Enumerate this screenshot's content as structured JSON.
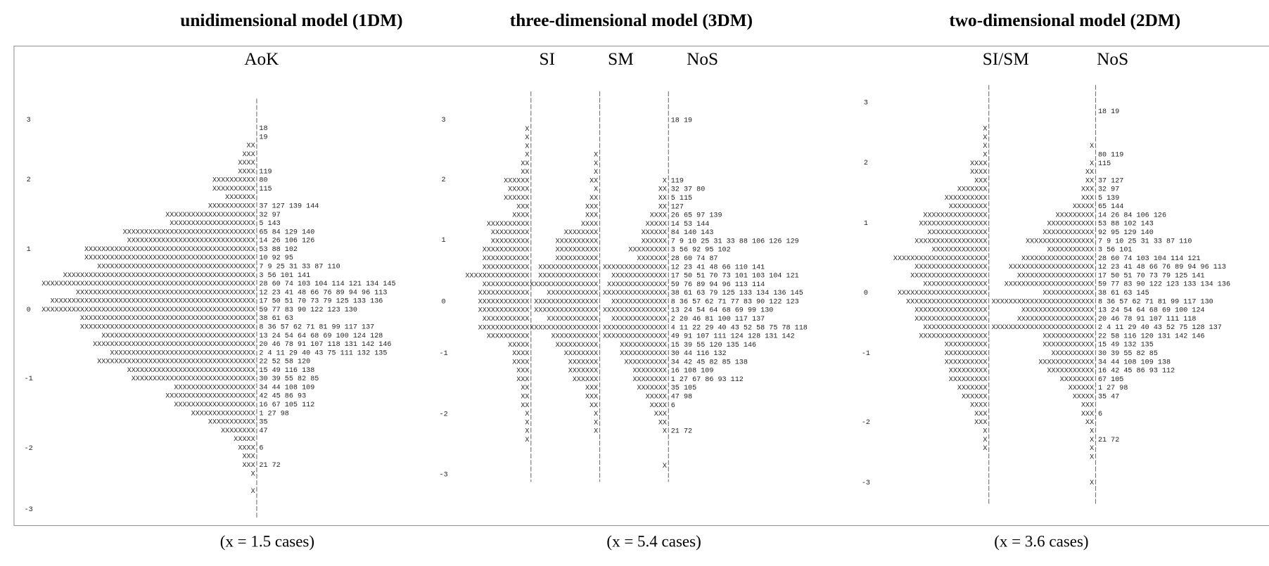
{
  "panels": [
    {
      "title": "unidimensional model (1DM)",
      "columns": [
        "AoK"
      ],
      "axis_labels": [
        "3",
        "2",
        "1",
        "0",
        "-1",
        "-2",
        "-3"
      ],
      "note": "(x = 1.5 cases)",
      "rows": [
        [
          null,
          null
        ],
        [
          null,
          null
        ],
        [
          null,
          null
        ],
        [
          null,
          "18"
        ],
        [
          null,
          "19"
        ],
        [
          "XX",
          null
        ],
        [
          "XXX",
          null
        ],
        [
          "XXXX",
          null
        ],
        [
          "XXXX",
          "119"
        ],
        [
          "XXXXXXXXXX",
          "80"
        ],
        [
          "XXXXXXXXXX",
          "115"
        ],
        [
          "XXXXXXX",
          null
        ],
        [
          "XXXXXXXXXXX",
          "37 127 139 144"
        ],
        [
          "XXXXXXXXXXXXXXXXXXXXX",
          "32 97"
        ],
        [
          "XXXXXXXXXXXXXXXXXXXX",
          "5 143"
        ],
        [
          "XXXXXXXXXXXXXXXXXXXXXXXXXXXXXXX",
          "65 84 129 140"
        ],
        [
          "XXXXXXXXXXXXXXXXXXXXXXXXXXXXXX",
          "14 26 106 126"
        ],
        [
          "XXXXXXXXXXXXXXXXXXXXXXXXXXXXXXXXXXXXXXXX",
          "53 88 102"
        ],
        [
          "XXXXXXXXXXXXXXXXXXXXXXXXXXXXXXXXXXXXXXXX",
          "10 92 95"
        ],
        [
          "XXXXXXXXXXXXXXXXXXXXXXXXXXXXXXXXXXXXX",
          "7 9 25 31 33 87 110"
        ],
        [
          "XXXXXXXXXXXXXXXXXXXXXXXXXXXXXXXXXXXXXXXXXXXXX",
          "3 56 101 141"
        ],
        [
          "XXXXXXXXXXXXXXXXXXXXXXXXXXXXXXXXXXXXXXXXXXXXXXXXXX",
          "28 60 74 103 104 114 121 134 145"
        ],
        [
          "XXXXXXXXXXXXXXXXXXXXXXXXXXXXXXXXXXXXXXXXXX",
          "12 23 41 48 66 76 89 94 96 113"
        ],
        [
          "XXXXXXXXXXXXXXXXXXXXXXXXXXXXXXXXXXXXXXXXXXXXXXXX",
          "17 50 51 70 73 79 125 133 136"
        ],
        [
          "XXXXXXXXXXXXXXXXXXXXXXXXXXXXXXXXXXXXXXXXXXXXXXXXXX",
          "59 77 83 90 122 123 130"
        ],
        [
          "XXXXXXXXXXXXXXXXXXXXXXXXXXXXXXXXXXXXXXXXX",
          "38 61 63"
        ],
        [
          "XXXXXXXXXXXXXXXXXXXXXXXXXXXXXXXXXXXXXXXXX",
          "8 36 57 62 71 81 99 117 137"
        ],
        [
          "XXXXXXXXXXXXXXXXXXXXXXXXXXXXXXXXXXXX",
          "13 24 54 64 68 69 100 124 128"
        ],
        [
          "XXXXXXXXXXXXXXXXXXXXXXXXXXXXXXXXXXXXXX",
          "20 46 78 91 107 118 131 142 146"
        ],
        [
          "XXXXXXXXXXXXXXXXXXXXXXXXXXXXXXXXXX",
          "2 4 11 29 40 43 75 111 132 135"
        ],
        [
          "XXXXXXXXXXXXXXXXXXXXXXXXXXXXXXXXXXXXX",
          "22 52 58 120"
        ],
        [
          "XXXXXXXXXXXXXXXXXXXXXXXXXXXXXX",
          "15 49 116 138"
        ],
        [
          "XXXXXXXXXXXXXXXXXXXXXXXXXXXXX",
          "30 39 55 82 85"
        ],
        [
          "XXXXXXXXXXXXXXXXXXX",
          "34 44 108 109"
        ],
        [
          "XXXXXXXXXXXXXXXXXXXXX",
          "42 45 86 93"
        ],
        [
          "XXXXXXXXXXXXXXXXXXX",
          "16 67 105 112"
        ],
        [
          "XXXXXXXXXXXXXXX",
          "1 27 98"
        ],
        [
          "XXXXXXXXXXX",
          "35"
        ],
        [
          "XXXXXXXX",
          "47"
        ],
        [
          "XXXXX",
          null
        ],
        [
          "XXXX",
          "6"
        ],
        [
          "XXX",
          null
        ],
        [
          "XXX",
          "21 72"
        ],
        [
          "X",
          null
        ],
        [
          null,
          null
        ],
        [
          "X",
          null
        ],
        [
          null,
          null
        ],
        [
          null,
          null
        ],
        [
          null,
          null
        ]
      ]
    },
    {
      "title": "three-dimensional model (3DM)",
      "columns": [
        "SI",
        "SM",
        "NoS"
      ],
      "axis_labels": [
        "3",
        "2",
        "1",
        "0",
        "-1",
        "-2",
        "-3"
      ],
      "note": "(x = 5.4 cases)",
      "rows": [
        [
          null,
          null,
          null,
          null
        ],
        [
          null,
          null,
          null,
          null
        ],
        [
          null,
          null,
          null,
          null
        ],
        [
          null,
          null,
          null,
          "18 19"
        ],
        [
          "X",
          null,
          null,
          null
        ],
        [
          "X",
          null,
          null,
          null
        ],
        [
          "X",
          null,
          null,
          null
        ],
        [
          "X",
          "X",
          null,
          null
        ],
        [
          "XX",
          "X",
          null,
          null
        ],
        [
          "XX",
          "X",
          null,
          null
        ],
        [
          "XXXXXX",
          "XX",
          "X",
          "119"
        ],
        [
          "XXXXX",
          "X",
          "XX",
          "32 37 80"
        ],
        [
          "XXXXXX",
          "XX",
          "XX",
          "5 115"
        ],
        [
          "XXX",
          "XXX",
          "XX",
          "127"
        ],
        [
          "XXXX",
          "XXX",
          "XXXX",
          "26 65 97 139"
        ],
        [
          "XXXXXXXXXX",
          "XXXX",
          "XXXXX",
          "14 53 144"
        ],
        [
          "XXXXXXXXX",
          "XXXXXXXX",
          "XXXXXX",
          "84 140 143"
        ],
        [
          "XXXXXXXXX",
          "XXXXXXXXXX",
          "XXXXXX",
          "7 9 10 25 31 33 88 106 126 129"
        ],
        [
          "XXXXXXXXXXX",
          "XXXXXXXXXX",
          "XXXXXXXXX",
          "3 56 92 95 102"
        ],
        [
          "XXXXXXXXXXX",
          "XXXXXXXXXX",
          "XXXXXXX",
          "28 60 74 87"
        ],
        [
          "XXXXXXXXXXX",
          "XXXXXXXXXXXXXX",
          "XXXXXXXXXXXXXXX",
          "12 23 41 48 66 110 141"
        ],
        [
          "XXXXXXXXXXXXXXX",
          "XXXXXXXXXXXXXX",
          "XXXXXXXXXXXXX",
          "17 50 51 70 73 101 103 104 121"
        ],
        [
          "XXXXXXXXXXX",
          "XXXXXXXXXXXXXXXX",
          "XXXXXXXXXXXXXX",
          "59 76 89 94 96 113 114"
        ],
        [
          "XXXXXXXXXXXX",
          "XXXXXXXXXXXX",
          "XXXXXXXXXXXXXXX",
          "38 61 63 79 125 133 134 136 145"
        ],
        [
          "XXXXXXXXXXXX",
          "XXXXXXXXXXXXXXX",
          "XXXXXXXXXXXXX",
          "8 36 57 62 71 77 83 90 122 123"
        ],
        [
          "XXXXXXXXXXXX",
          "XXXXXXXXXXXXXXX",
          "XXXXXXXXXXXXXXX",
          "13 24 54 64 68 69 99 130"
        ],
        [
          "XXXXXXXXXXX",
          "XXXXXXXXXXXX",
          "XXXXXXXXXXXXX",
          "2 20 46 81 100 117 137"
        ],
        [
          "XXXXXXXXXXXX",
          "XXXXXXXXXXXXXXXX",
          "XXXXXXXXXXXXXXX",
          "4 11 22 29 40 43 52 58 75 78 118"
        ],
        [
          "XXXXXXXXXX",
          "XXXXXXXXXXX",
          "XXXXXXXXXXXXXXX",
          "49 91 107 111 124 128 131 142"
        ],
        [
          "XXXXX",
          "XXXXXXXXXX",
          "XXXXXXXXXXX",
          "15 39 55 120 135 146"
        ],
        [
          "XXXX",
          "XXXXXXXX",
          "XXXXXXXXXXX",
          "30 44 116 132"
        ],
        [
          "XXXX",
          "XXXXXXX",
          "XXXXXXXXXX",
          "34 42 45 82 85 138"
        ],
        [
          "XXX",
          "XXXXXXX",
          "XXXXXXXX",
          "16 108 109"
        ],
        [
          "XXX",
          "XXXXXX",
          "XXXXXXXX",
          "1 27 67 86 93 112"
        ],
        [
          "XX",
          "XXX",
          "XXXXXXX",
          "35 105"
        ],
        [
          "XX",
          "XXX",
          "XXXXX",
          "47 98"
        ],
        [
          "XX",
          "XX",
          "XXXX",
          "6"
        ],
        [
          "X",
          "X",
          "XXX",
          null
        ],
        [
          "X",
          "X",
          "XX",
          null
        ],
        [
          "X",
          "X",
          "X",
          "21 72"
        ],
        [
          "X",
          null,
          null,
          null
        ],
        [
          null,
          null,
          null,
          null
        ],
        [
          null,
          null,
          null,
          null
        ],
        [
          null,
          null,
          "X",
          null
        ],
        [
          null,
          null,
          null,
          null
        ],
        [
          null,
          null,
          null,
          null
        ]
      ]
    },
    {
      "title": "two-dimensional model (2DM)",
      "columns": [
        "SI/SM",
        "NoS"
      ],
      "axis_labels": [
        "3",
        "2",
        "1",
        "0",
        "-1",
        "-2",
        "-3"
      ],
      "note": "(x = 3.6 cases)",
      "rows": [
        [
          null,
          null,
          null
        ],
        [
          null,
          null,
          null
        ],
        [
          null,
          null,
          null
        ],
        [
          null,
          null,
          "18 19"
        ],
        [
          null,
          null,
          null
        ],
        [
          "X",
          null,
          null
        ],
        [
          "X",
          null,
          null
        ],
        [
          "X",
          "X",
          null
        ],
        [
          "X",
          null,
          "80 119"
        ],
        [
          "XXXX",
          "X",
          "115"
        ],
        [
          "XXXX",
          "XX",
          null
        ],
        [
          "XXX",
          "XX",
          "37 127"
        ],
        [
          "XXXXXXX",
          "XXX",
          "32 97"
        ],
        [
          "XXXXXXXXXX",
          "XXX",
          "5 139"
        ],
        [
          "XXXXXXXXX",
          "XXXXX",
          "65 144"
        ],
        [
          "XXXXXXXXXXXXXXX",
          "XXXXXXXXX",
          "14 26 84 106 126"
        ],
        [
          "XXXXXXXXXXXXXXXX",
          "XXXXXXXXXXX",
          "53 88 102 143"
        ],
        [
          "XXXXXXXXXXXXXX",
          "XXXXXXXXXXXX",
          "92 95 129 140"
        ],
        [
          "XXXXXXXXXXXXXXXXX",
          "XXXXXXXXXXXXXXXX",
          "7 9 10 25 31 33 87 110"
        ],
        [
          "XXXXXXXXXXXXX",
          "XXXXXXXXXXX",
          "3 56 101"
        ],
        [
          "XXXXXXXXXXXXXXXXXXXXXX",
          "XXXXXXXXXXXXXXXXX",
          "28 60 74 103 104 114 121"
        ],
        [
          "XXXXXXXXXXXXXXXXX",
          "XXXXXXXXXXXXXXXXXXXX",
          "12 23 41 48 66 76 89 94 96 113"
        ],
        [
          "XXXXXXXXXXXXXXXXXX",
          "XXXXXXXXXXXXXXXXXX",
          "17 50 51 70 73 79 125 141"
        ],
        [
          "XXXXXXXXXXXXXXX",
          "XXXXXXXXXXXXXXXXXXXXX",
          "59 77 83 90 122 123 133 134 136"
        ],
        [
          "XXXXXXXXXXXXXXXXXXXXX",
          "XXXXXXXXXXXX",
          "38 61 63 145"
        ],
        [
          "XXXXXXXXXXXXXXXXXXX",
          "XXXXXXXXXXXXXXXXXXXXXXXX",
          "8 36 57 62 71 81 99 117 130"
        ],
        [
          "XXXXXXXXXXXXXXXXX",
          "XXXXXXXXXXXXXXXXX",
          "13 24 54 64 68 69 100 124"
        ],
        [
          "XXXXXXXXXXXXXXXXX",
          "XXXXXXXXXXXXXXXXXX",
          "20 46 78 91 107 111 118"
        ],
        [
          "XXXXXXXXXXXXXXX",
          "XXXXXXXXXXXXXXXXXXXXXXXX",
          "2 4 11 29 40 43 52 75 128 137"
        ],
        [
          "XXXXXXXXXXXXXXXX",
          "XXXXXXXXXXXX",
          "22 58 116 120 131 142 146"
        ],
        [
          "XXXXXXXXXX",
          "XXXXXXXXXXXX",
          "15 49 132 135"
        ],
        [
          "XXXXXXXXXX",
          "XXXXXXXXXX",
          "30 39 55 82 85"
        ],
        [
          "XXXXXXXXXX",
          "XXXXXXXXXXXXX",
          "34 44 108 109 138"
        ],
        [
          "XXXXXXXXX",
          "XXXXXXXXXXX",
          "16 42 45 86 93 112"
        ],
        [
          "XXXXXXXXX",
          "XXXXXXXX",
          "67 105"
        ],
        [
          "XXXXXXX",
          "XXXXXX",
          "1 27 98"
        ],
        [
          "XXXXXX",
          "XXXXX",
          "35 47"
        ],
        [
          "XXXX",
          "XXX",
          null
        ],
        [
          "XXX",
          "XXX",
          "6"
        ],
        [
          "XXX",
          "XX",
          null
        ],
        [
          "X",
          "X",
          null
        ],
        [
          "X",
          "X",
          "21 72"
        ],
        [
          "X",
          "X",
          null
        ],
        [
          null,
          "X",
          null
        ],
        [
          null,
          null,
          null
        ],
        [
          null,
          null,
          null
        ],
        [
          null,
          "X",
          null
        ],
        [
          null,
          null,
          null
        ],
        [
          null,
          null,
          null
        ]
      ]
    }
  ]
}
